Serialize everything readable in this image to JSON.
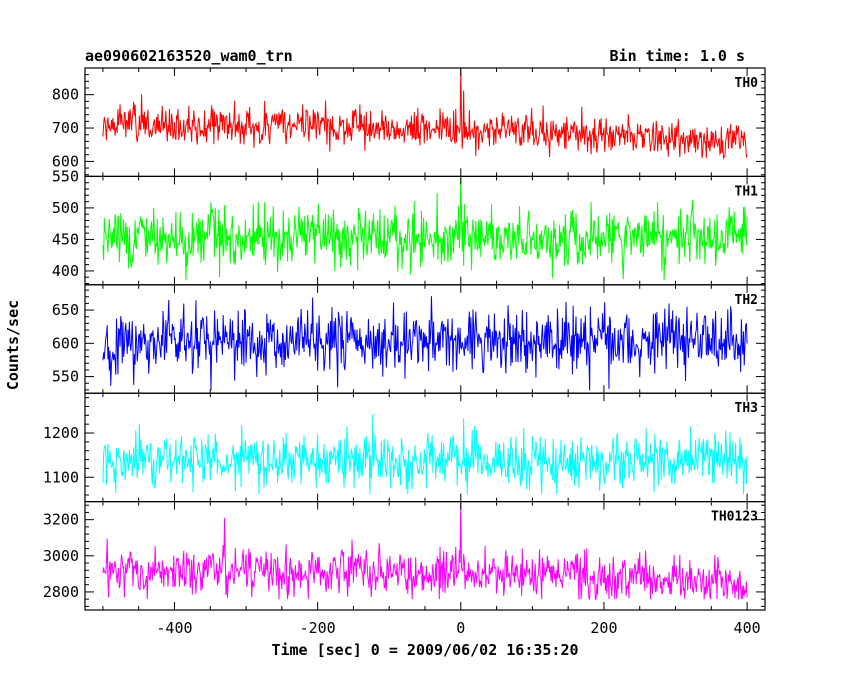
{
  "header": {
    "title": "ae090602163520_wam0_trn",
    "bin_time": "Bin time: 1.0 s"
  },
  "chart_data": {
    "type": "line",
    "xlabel": "Time [sec] 0 = 2009/06/02 16:35:20",
    "ylabel": "Counts/sec",
    "xlim": [
      -525,
      425
    ],
    "xticks": [
      -400,
      -200,
      0,
      200,
      400
    ],
    "x_range": [
      -500,
      400
    ],
    "bin_time_s": 1.0,
    "panels": [
      {
        "name": "TH0",
        "color": "#ff0000",
        "ylim": [
          555,
          880
        ],
        "yticks": [
          600,
          700,
          800
        ],
        "trend": [
          [
            -500,
            712
          ],
          [
            -200,
            705
          ],
          [
            100,
            690
          ],
          [
            400,
            655
          ]
        ],
        "noise_sd": 28,
        "clip": [
          610,
          815
        ],
        "spikes": [
          {
            "x": 0,
            "y": 880
          }
        ]
      },
      {
        "name": "TH1",
        "color": "#00ff00",
        "ylim": [
          378,
          550
        ],
        "yticks": [
          400,
          450,
          500,
          550
        ],
        "trend": [
          [
            -500,
            452
          ],
          [
            400,
            452
          ]
        ],
        "noise_sd": 24,
        "clip": [
          385,
          540
        ],
        "spikes": [
          {
            "x": 0,
            "y": 550
          }
        ]
      },
      {
        "name": "TH2",
        "color": "#0000ff",
        "ylim": [
          525,
          688
        ],
        "yticks": [
          550,
          600,
          650
        ],
        "trend": [
          [
            -500,
            603
          ],
          [
            400,
            606
          ]
        ],
        "noise_sd": 24,
        "clip": [
          528,
          688
        ],
        "spikes": []
      },
      {
        "name": "TH3",
        "color": "#00ffff",
        "ylim": [
          1045,
          1290
        ],
        "yticks": [
          1100,
          1200
        ],
        "trend": [
          [
            -500,
            1140
          ],
          [
            400,
            1140
          ]
        ],
        "noise_sd": 32,
        "clip": [
          1062,
          1265
        ],
        "spikes": []
      },
      {
        "name": "TH0123",
        "color": "#ff00ff",
        "ylim": [
          2700,
          3300
        ],
        "yticks": [
          2800,
          3000,
          3200
        ],
        "trend": [
          [
            -500,
            2920
          ],
          [
            0,
            2905
          ],
          [
            400,
            2860
          ]
        ],
        "noise_sd": 60,
        "clip": [
          2760,
          3100
        ],
        "spikes": [
          {
            "x": 0,
            "y": 3300
          },
          {
            "x": -330,
            "y": 3210
          }
        ]
      }
    ]
  }
}
